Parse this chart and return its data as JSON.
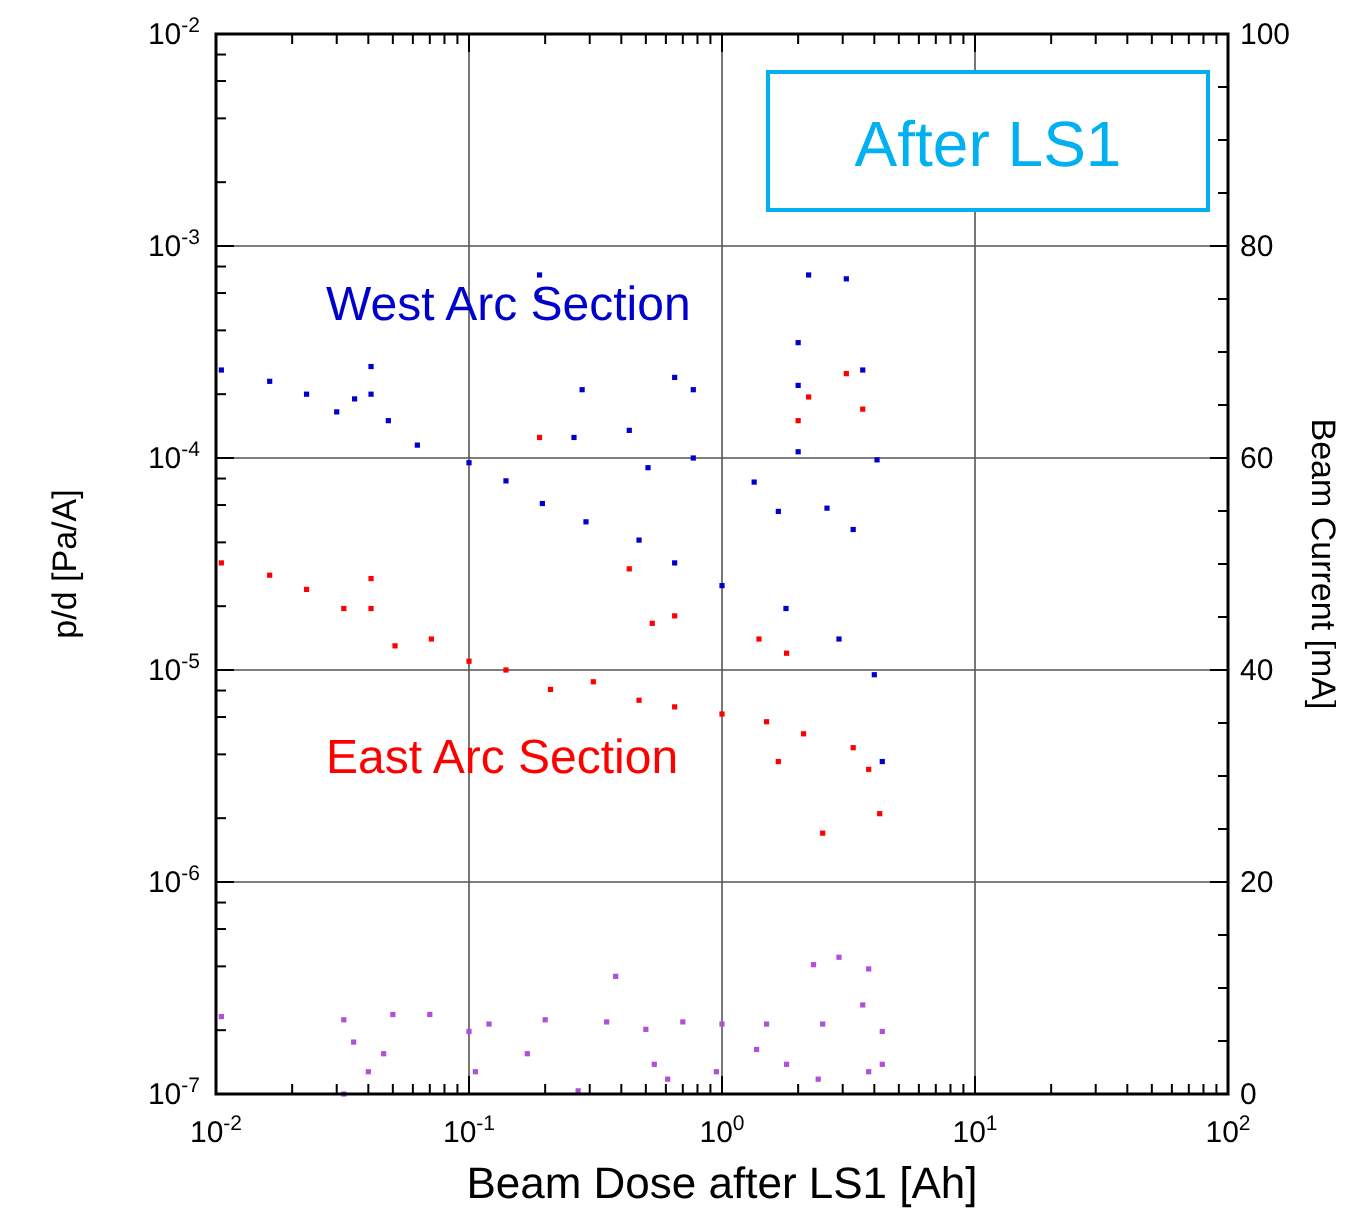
{
  "chart_data": {
    "type": "scatter",
    "xlabel": "Beam Dose after LS1 [Ah]",
    "ylabel": "p/d [Pa/A]",
    "y2label": "Beam Current [mA]",
    "log": "xy",
    "grid": true,
    "marker": "square",
    "annotations": [
      "After LS1"
    ],
    "xlim": [
      0.01,
      100
    ],
    "ylim": [
      1e-07,
      0.01
    ],
    "y2lim": [
      0,
      100
    ],
    "xticks": [
      {
        "value": 0.01,
        "label": "10$^{-2}$"
      },
      {
        "value": 0.02,
        "label": null
      },
      {
        "value": 0.03,
        "label": null
      },
      {
        "value": 0.04,
        "label": null
      },
      {
        "value": 0.05,
        "label": null
      },
      {
        "value": 0.06,
        "label": null
      },
      {
        "value": 0.07,
        "label": null
      },
      {
        "value": 0.08,
        "label": null
      },
      {
        "value": 0.09,
        "label": null
      },
      {
        "value": 0.1,
        "label": "10$^{-1}$"
      },
      {
        "value": 0.2,
        "label": null
      },
      {
        "value": 0.3,
        "label": null
      },
      {
        "value": 0.4,
        "label": null
      },
      {
        "value": 0.5,
        "label": null
      },
      {
        "value": 0.6,
        "label": null
      },
      {
        "value": 0.7,
        "label": null
      },
      {
        "value": 0.8,
        "label": null
      },
      {
        "value": 0.9,
        "label": null
      },
      {
        "value": 1,
        "label": "10$^{0}$"
      },
      {
        "value": 2,
        "label": null
      },
      {
        "value": 3,
        "label": null
      },
      {
        "value": 4,
        "label": null
      },
      {
        "value": 5,
        "label": null
      },
      {
        "value": 6,
        "label": null
      },
      {
        "value": 7,
        "label": null
      },
      {
        "value": 8,
        "label": null
      },
      {
        "value": 9,
        "label": null
      },
      {
        "value": 10,
        "label": "10$^{1}$"
      },
      {
        "value": 20,
        "label": null
      },
      {
        "value": 30,
        "label": null
      },
      {
        "value": 40,
        "label": null
      },
      {
        "value": 50,
        "label": null
      },
      {
        "value": 60,
        "label": null
      },
      {
        "value": 70,
        "label": null
      },
      {
        "value": 80,
        "label": null
      },
      {
        "value": 90,
        "label": null
      },
      {
        "value": 100,
        "label": "10$^{2}$"
      }
    ],
    "yticks": [
      {
        "value": 1e-07,
        "label": "10$^{-7}$"
      },
      {
        "value": 2e-07,
        "label": null
      },
      {
        "value": 4e-07,
        "label": null
      },
      {
        "value": 6e-07,
        "label": null
      },
      {
        "value": 8e-07,
        "label": null
      },
      {
        "value": 1e-06,
        "label": "10$^{-6}$"
      },
      {
        "value": 2e-06,
        "label": null
      },
      {
        "value": 4e-06,
        "label": null
      },
      {
        "value": 6e-06,
        "label": null
      },
      {
        "value": 8e-06,
        "label": null
      },
      {
        "value": 1e-05,
        "label": "10$^{-5}$"
      },
      {
        "value": 2e-05,
        "label": null
      },
      {
        "value": 4e-05,
        "label": null
      },
      {
        "value": 6e-05,
        "label": null
      },
      {
        "value": 8e-05,
        "label": null
      },
      {
        "value": 0.0001,
        "label": "10$^{-4}$"
      },
      {
        "value": 0.0002,
        "label": null
      },
      {
        "value": 0.0004,
        "label": null
      },
      {
        "value": 0.0006,
        "label": null
      },
      {
        "value": 0.0008,
        "label": null
      },
      {
        "value": 0.001,
        "label": "10$^{-3}$"
      },
      {
        "value": 0.002,
        "label": null
      },
      {
        "value": 0.004,
        "label": null
      },
      {
        "value": 0.006,
        "label": null
      },
      {
        "value": 0.008,
        "label": null
      },
      {
        "value": 0.01,
        "label": "10$^{-2}$"
      }
    ],
    "y2ticks": [
      0,
      {
        "value": 5,
        "label": null
      },
      {
        "value": 10,
        "label": null
      },
      {
        "value": 15,
        "label": null
      },
      20,
      {
        "value": 25,
        "label": null
      },
      {
        "value": 30,
        "label": null
      },
      {
        "value": 35,
        "label": null
      },
      40,
      {
        "value": 45,
        "label": null
      },
      {
        "value": 50,
        "label": null
      },
      {
        "value": 55,
        "label": null
      },
      60,
      {
        "value": 65,
        "label": null
      },
      {
        "value": 70,
        "label": null
      },
      {
        "value": 75,
        "label": null
      },
      80,
      {
        "value": 85,
        "label": null
      },
      {
        "value": 90,
        "label": null
      },
      {
        "value": 95,
        "label": null
      },
      100
    ],
    "series": [
      {
        "name": "West Arc Section",
        "color": "#0000cc",
        "x": [
          0.0105,
          0.0163,
          0.0228,
          0.03,
          0.0353,
          0.041,
          0.041,
          0.048,
          0.0625,
          0.1,
          0.14,
          0.195,
          0.29,
          0.47,
          0.65,
          1,
          1.79,
          2.9,
          4,
          4.3,
          0.19,
          0.19,
          2.2,
          3.1,
          2,
          2,
          3.6,
          4.1,
          0.28,
          0.65,
          0.77,
          0.43,
          0.26,
          0.51,
          0.77,
          1.34,
          1.67,
          2,
          2.6,
          3.3
        ],
        "values": [
          0.00026,
          0.00023,
          0.0002,
          0.000165,
          0.00019,
          0.00027,
          0.0002,
          0.00015,
          0.000115,
          9.5e-05,
          7.8e-05,
          6.1e-05,
          5e-05,
          4.1e-05,
          3.2e-05,
          2.5e-05,
          1.95e-05,
          1.4e-05,
          9.5e-06,
          3.7e-06,
          0.00073,
          0.00057,
          0.00073,
          0.0007,
          0.00035,
          0.00022,
          0.00026,
          9.8e-05,
          0.00021,
          0.00024,
          0.00021,
          0.000135,
          0.000125,
          9e-05,
          0.0001,
          7.7e-05,
          5.6e-05,
          0.000107,
          5.8e-05,
          4.6e-05
        ]
      },
      {
        "name": "East Arc Section",
        "color": "#ff0000",
        "x": [
          0.0105,
          0.0163,
          0.0228,
          0.032,
          0.041,
          0.041,
          0.051,
          0.071,
          0.1,
          0.14,
          0.21,
          0.31,
          0.47,
          0.65,
          1,
          1.5,
          2.1,
          3.3,
          3.8,
          4.2,
          2.5,
          2.2,
          3.1,
          3.6,
          0.19,
          2,
          0.43,
          0.53,
          0.65,
          1.4,
          1.8,
          1.67
        ],
        "values": [
          3.2e-05,
          2.8e-05,
          2.4e-05,
          1.95e-05,
          2.7e-05,
          1.95e-05,
          1.3e-05,
          1.4e-05,
          1.1e-05,
          1e-05,
          8.1e-06,
          8.8e-06,
          7.2e-06,
          6.7e-06,
          6.2e-06,
          5.7e-06,
          5e-06,
          4.3e-06,
          3.4e-06,
          2.1e-06,
          1.7e-06,
          0.000194,
          0.00025,
          0.00017,
          0.000125,
          0.00015,
          3e-05,
          1.66e-05,
          1.8e-05,
          1.4e-05,
          1.2e-05,
          3.7e-06
        ]
      },
      {
        "color": "#b050d8",
        "axis": "y2",
        "x": [
          0.0105,
          0.032,
          0.05,
          0.07,
          0.1,
          0.12,
          0.2,
          0.35,
          0.5,
          0.7,
          1,
          1.5,
          2.5,
          4.3,
          2.3,
          2.9,
          3.8,
          0.035,
          0.04,
          0.046,
          0.032,
          0.106,
          0.17,
          0.27,
          0.38,
          0.54,
          0.61,
          0.95,
          1.37,
          1.8,
          2.4,
          3.6,
          3.8,
          4.3
        ],
        "values": [
          7.3,
          7.0,
          7.5,
          7.5,
          5.9,
          6.6,
          7.0,
          6.8,
          6.1,
          6.8,
          6.6,
          6.6,
          6.6,
          5.9,
          12.2,
          12.9,
          11.8,
          4.9,
          2.1,
          3.8,
          0,
          2.1,
          3.8,
          0.3,
          11.1,
          2.8,
          1.4,
          2.1,
          4.2,
          2.8,
          1.4,
          8.4,
          2.1,
          2.8
        ]
      }
    ]
  }
}
